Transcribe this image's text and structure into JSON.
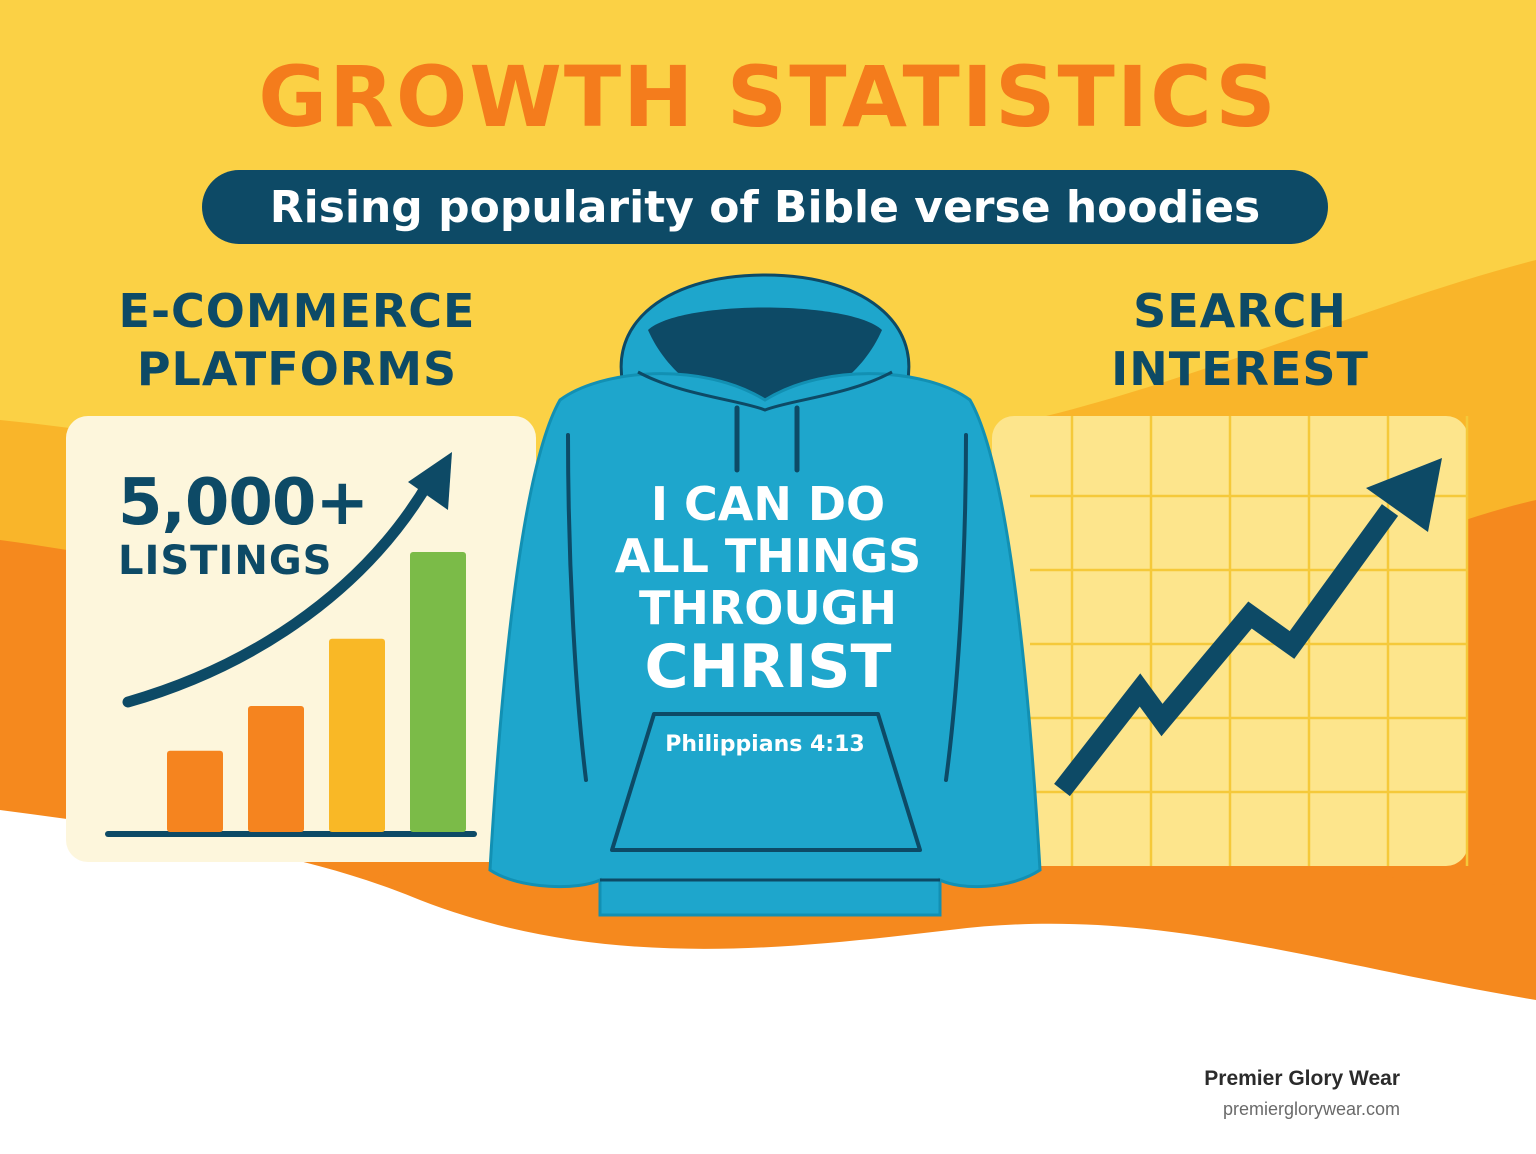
{
  "title": "GROWTH STATISTICS",
  "subtitle": "Rising popularity of Bible verse hoodies",
  "left_panel": {
    "heading_line1": "E-COMMERCE",
    "heading_line2": "PLATFORMS",
    "stat_value": "5,000+",
    "stat_label": "LISTINGS",
    "bar_levels": [
      0.29,
      0.45,
      0.69,
      1.0
    ],
    "bar_colors": [
      "#f5841f",
      "#f5841f",
      "#f9b826",
      "#7bbb48"
    ]
  },
  "right_panel": {
    "heading_line1": "SEARCH",
    "heading_line2": "INTEREST"
  },
  "hoodie": {
    "color": "#1ea6cc",
    "verse_line1": "I CAN DO",
    "verse_line2": "ALL THINGS",
    "verse_line3": "THROUGH",
    "verse_line4": "CHRIST",
    "reference": "Philippians 4:13"
  },
  "footer": {
    "brand": "Premier Glory Wear",
    "url": "premierglorywear.com"
  },
  "colors": {
    "accent_orange": "#f47c1c",
    "navy": "#0d4a66",
    "yellow": "#fbd145",
    "green": "#7bbb48"
  }
}
